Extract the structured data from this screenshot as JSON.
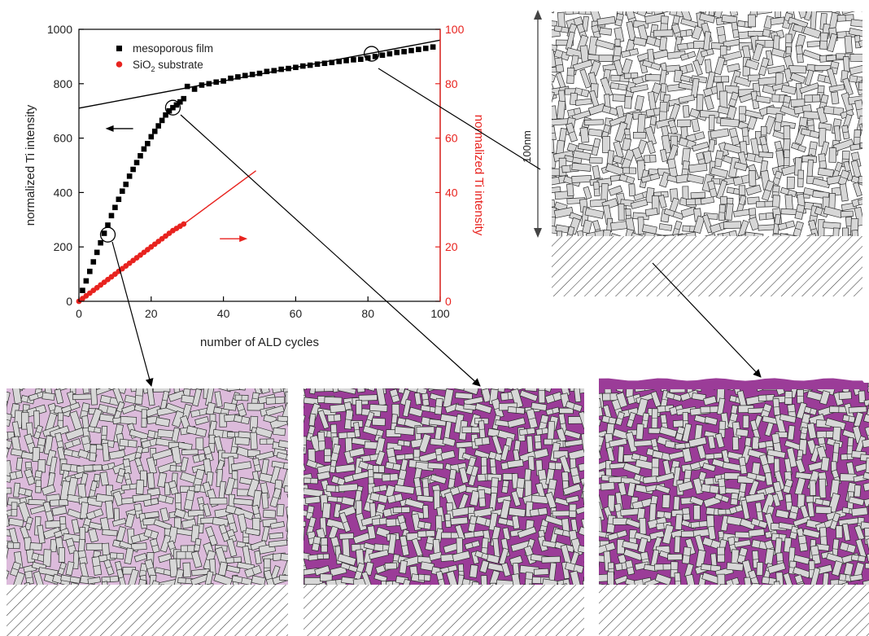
{
  "colors": {
    "film": "#000000",
    "substrate": "#e8231f",
    "fill": "#9b3c98",
    "block": "#d7d7d7",
    "block_stroke": "#2b2b2b",
    "hatch": "#3a3a3a"
  },
  "chart_data": {
    "type": "scatter",
    "xlabel": "number of ALD cycles",
    "ylabel": "normalized Ti intensity",
    "y2label": "normalized Ti intensity",
    "xlim": [
      0,
      100
    ],
    "ylim": [
      0,
      1000
    ],
    "y2lim": [
      0,
      100
    ],
    "x_ticks": [
      "0",
      "20",
      "40",
      "60",
      "80",
      "100"
    ],
    "y_ticks": [
      "0",
      "200",
      "400",
      "600",
      "800",
      "1000"
    ],
    "y2_ticks": [
      "0",
      "20",
      "40",
      "60",
      "80",
      "100"
    ],
    "legend_position": "top-left",
    "legend": {
      "film": "mesoporous film",
      "substrate_pre": "SiO",
      "substrate_sub": "2",
      "substrate_post": " substrate"
    },
    "series": [
      {
        "name": "mesoporous film",
        "axis": "left",
        "marker": "square",
        "x": [
          1,
          2,
          3,
          4,
          5,
          6,
          7,
          8,
          9,
          10,
          11,
          12,
          13,
          14,
          15,
          16,
          17,
          18,
          19,
          20,
          21,
          22,
          23,
          24,
          25,
          26,
          27,
          28,
          29,
          30,
          32,
          34,
          36,
          38,
          40,
          42,
          44,
          46,
          48,
          50,
          52,
          54,
          56,
          58,
          60,
          62,
          64,
          66,
          68,
          70,
          72,
          74,
          76,
          78,
          80,
          82,
          84,
          86,
          88,
          90,
          92,
          94,
          96,
          98
        ],
        "y": [
          40,
          75,
          110,
          145,
          180,
          215,
          250,
          280,
          315,
          345,
          375,
          405,
          430,
          460,
          485,
          510,
          535,
          560,
          580,
          605,
          625,
          645,
          665,
          685,
          700,
          712,
          722,
          733,
          745,
          790,
          780,
          795,
          800,
          806,
          810,
          820,
          825,
          830,
          834,
          838,
          845,
          848,
          853,
          856,
          860,
          865,
          868,
          872,
          875,
          878,
          882,
          885,
          888,
          890,
          895,
          900,
          905,
          910,
          915,
          918,
          922,
          926,
          930,
          935
        ]
      },
      {
        "name": "SiO2 substrate",
        "axis": "right",
        "marker": "circle",
        "x": [
          0,
          1,
          2,
          3,
          4,
          5,
          6,
          7,
          8,
          9,
          10,
          11,
          12,
          13,
          14,
          15,
          16,
          17,
          18,
          19,
          20,
          21,
          22,
          23,
          24,
          25,
          26,
          27,
          28,
          29
        ],
        "y": [
          0,
          1,
          2,
          3,
          4,
          5,
          6,
          7,
          8,
          9,
          10,
          11,
          12,
          13,
          14,
          15,
          16,
          17,
          18,
          19,
          20,
          21,
          22,
          23,
          24,
          25,
          26,
          26.8,
          27.6,
          28.4
        ]
      }
    ],
    "fits": [
      {
        "axis": "left",
        "x": [
          0,
          100
        ],
        "y": [
          710,
          960
        ]
      },
      {
        "axis": "right",
        "x": [
          0,
          49
        ],
        "y": [
          0,
          48
        ]
      }
    ],
    "annotations": {
      "circled_points": [
        {
          "x": 8,
          "y": 245
        },
        {
          "x": 26,
          "y": 712
        },
        {
          "x": 81,
          "y": 910
        }
      ],
      "arrows": [
        {
          "series": "mesoporous film",
          "direction": "left",
          "at": {
            "x": 15,
            "y": 635
          }
        },
        {
          "series": "SiO2 substrate",
          "direction": "right",
          "at": {
            "x": 39,
            "y": 23
          }
        }
      ]
    }
  },
  "schematic": {
    "scale_label": "100nm",
    "panels": [
      {
        "id": "empty",
        "fill_level": 0,
        "overlayer": false
      },
      {
        "id": "early",
        "fill_level": 0.15,
        "overlayer": false
      },
      {
        "id": "filled",
        "fill_level": 1,
        "overlayer": false
      },
      {
        "id": "capped",
        "fill_level": 1,
        "overlayer": true
      }
    ]
  }
}
